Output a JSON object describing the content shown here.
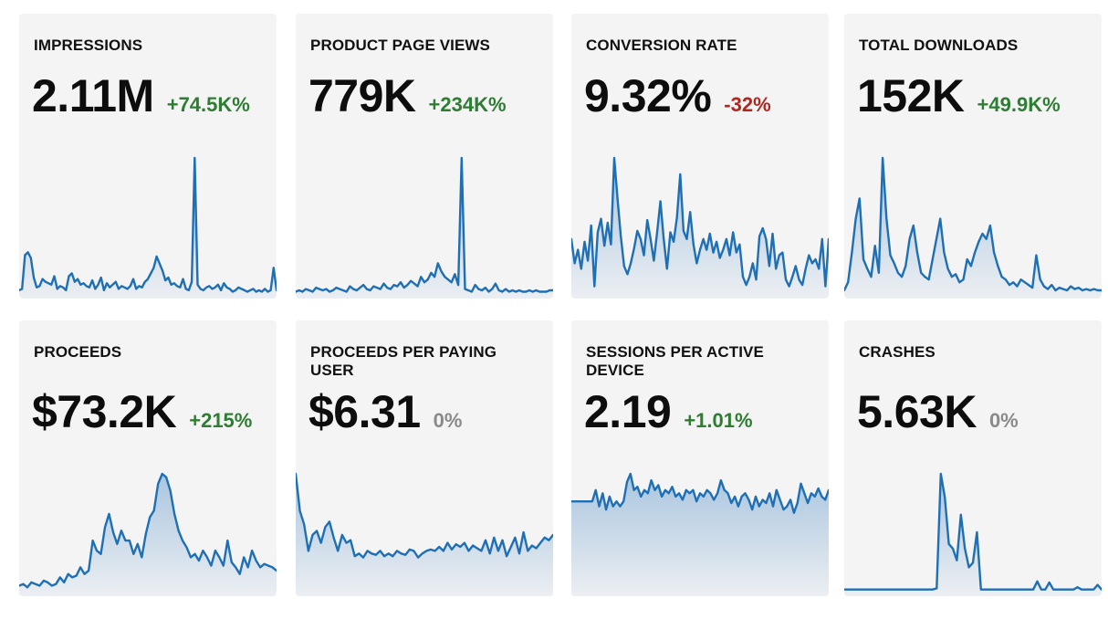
{
  "accent_color": "#1f6fb5",
  "positive_color": "#2e7d32",
  "negative_color": "#b3261e",
  "neutral_color": "#8a8a8a",
  "metrics": [
    {
      "title": "IMPRESSIONS",
      "value": "2.11M",
      "delta": "+74.5K%",
      "trend": "positive",
      "series": [
        2,
        3,
        27,
        29,
        25,
        11,
        4,
        5,
        10,
        8,
        7,
        6,
        12,
        3,
        5,
        4,
        2,
        12,
        14,
        8,
        10,
        6,
        7,
        5,
        4,
        9,
        3,
        6,
        11,
        2,
        7,
        4,
        6,
        8,
        3,
        5,
        4,
        3,
        5,
        10,
        3,
        5,
        4,
        8,
        10,
        14,
        18,
        26,
        21,
        16,
        9,
        11,
        6,
        7,
        5,
        4,
        10,
        3,
        2,
        8,
        96,
        6,
        3,
        2,
        4,
        5,
        3,
        4,
        6,
        2,
        7,
        4,
        3,
        1,
        2,
        4,
        3,
        2,
        1,
        2,
        3,
        1,
        2,
        1,
        3,
        1,
        2,
        18,
        2
      ]
    },
    {
      "title": "PRODUCT PAGE VIEWS",
      "value": "779K",
      "delta": "+234K%",
      "trend": "positive",
      "series": [
        1,
        2,
        1,
        3,
        2,
        1,
        4,
        3,
        2,
        3,
        1,
        2,
        4,
        3,
        2,
        1,
        5,
        3,
        2,
        4,
        6,
        3,
        2,
        5,
        4,
        3,
        7,
        4,
        3,
        6,
        5,
        8,
        4,
        6,
        9,
        7,
        5,
        12,
        8,
        10,
        15,
        12,
        22,
        16,
        12,
        10,
        8,
        14,
        6,
        100,
        3,
        2,
        1,
        6,
        3,
        2,
        4,
        1,
        3,
        7,
        2,
        1,
        3,
        1,
        2,
        1,
        2,
        1,
        1,
        2,
        1,
        2,
        1,
        1,
        1,
        2,
        2
      ]
    },
    {
      "title": "CONVERSION RATE",
      "value": "9.32%",
      "delta": "-32%",
      "trend": "negative",
      "series": [
        40,
        22,
        32,
        18,
        38,
        24,
        50,
        5,
        45,
        55,
        35,
        52,
        36,
        100,
        70,
        42,
        20,
        14,
        22,
        33,
        46,
        40,
        28,
        54,
        40,
        24,
        45,
        68,
        40,
        18,
        45,
        38,
        56,
        88,
        46,
        40,
        60,
        36,
        22,
        32,
        40,
        32,
        44,
        30,
        38,
        26,
        32,
        40,
        28,
        45,
        30,
        36,
        12,
        6,
        12,
        22,
        10,
        42,
        48,
        40,
        20,
        44,
        18,
        28,
        30,
        10,
        5,
        12,
        20,
        10,
        6,
        18,
        28,
        22,
        25,
        18,
        40,
        5,
        40
      ]
    },
    {
      "title": "TOTAL DOWNLOADS",
      "value": "152K",
      "delta": "+49.9K%",
      "trend": "positive",
      "series": [
        2,
        8,
        30,
        55,
        70,
        25,
        18,
        12,
        35,
        15,
        100,
        55,
        28,
        22,
        15,
        12,
        20,
        40,
        50,
        30,
        15,
        12,
        10,
        25,
        40,
        55,
        30,
        18,
        12,
        14,
        8,
        10,
        25,
        20,
        30,
        38,
        44,
        40,
        50,
        30,
        20,
        12,
        10,
        6,
        8,
        5,
        10,
        8,
        6,
        4,
        28,
        10,
        5,
        3,
        6,
        2,
        4,
        3,
        2,
        5,
        3,
        4,
        2,
        3,
        2,
        3,
        2,
        2
      ]
    },
    {
      "title": "PROCEEDS",
      "value": "$73.2K",
      "delta": "+215%",
      "trend": "positive",
      "series": [
        3,
        4,
        2,
        5,
        4,
        3,
        6,
        5,
        3,
        4,
        8,
        5,
        10,
        8,
        9,
        14,
        10,
        12,
        30,
        24,
        22,
        38,
        46,
        35,
        28,
        36,
        30,
        30,
        22,
        28,
        20,
        34,
        44,
        48,
        64,
        70,
        68,
        60,
        46,
        36,
        30,
        26,
        20,
        22,
        18,
        24,
        20,
        15,
        24,
        20,
        15,
        30,
        17,
        14,
        10,
        20,
        14,
        24,
        18,
        14,
        16,
        15,
        14,
        12
      ]
    },
    {
      "title": "PROCEEDS PER PAYING USER",
      "value": "$6.31",
      "delta": "0%",
      "trend": "neutral",
      "series": [
        88,
        60,
        50,
        30,
        42,
        45,
        36,
        48,
        52,
        40,
        30,
        42,
        36,
        38,
        26,
        28,
        25,
        30,
        28,
        27,
        30,
        26,
        28,
        26,
        30,
        28,
        27,
        31,
        30,
        25,
        28,
        30,
        31,
        30,
        33,
        30,
        36,
        31,
        35,
        33,
        36,
        30,
        34,
        32,
        30,
        38,
        28,
        40,
        30,
        38,
        26,
        33,
        40,
        28,
        44,
        30,
        34,
        32,
        36,
        40,
        38,
        42
      ]
    },
    {
      "title": "SESSIONS PER ACTIVE DEVICE",
      "value": "2.19",
      "delta": "+1.01%",
      "trend": "positive",
      "series": [
        55,
        55,
        55,
        55,
        55,
        55,
        55,
        62,
        52,
        60,
        50,
        58,
        52,
        55,
        52,
        55,
        67,
        72,
        62,
        64,
        58,
        62,
        60,
        68,
        62,
        65,
        58,
        62,
        60,
        64,
        58,
        60,
        56,
        62,
        60,
        62,
        55,
        60,
        58,
        62,
        60,
        56,
        60,
        68,
        62,
        60,
        54,
        58,
        52,
        58,
        60,
        56,
        50,
        58,
        52,
        56,
        54,
        60,
        52,
        62,
        56,
        50,
        52,
        56,
        48,
        54,
        66,
        60,
        54,
        60,
        58,
        63,
        58,
        56,
        62
      ]
    },
    {
      "title": "CRASHES",
      "value": "5.63K",
      "delta": "0%",
      "trend": "neutral",
      "series": [
        1,
        1,
        1,
        1,
        1,
        1,
        1,
        1,
        1,
        1,
        1,
        1,
        1,
        1,
        1,
        1,
        1,
        1,
        1,
        1,
        1,
        1,
        1,
        2,
        100,
        80,
        40,
        36,
        26,
        65,
        36,
        20,
        24,
        50,
        1,
        1,
        1,
        1,
        1,
        1,
        1,
        1,
        1,
        1,
        1,
        1,
        1,
        1,
        8,
        1,
        1,
        7,
        1,
        1,
        1,
        1,
        1,
        1,
        3,
        1,
        1,
        1,
        1,
        5,
        1
      ]
    }
  ]
}
